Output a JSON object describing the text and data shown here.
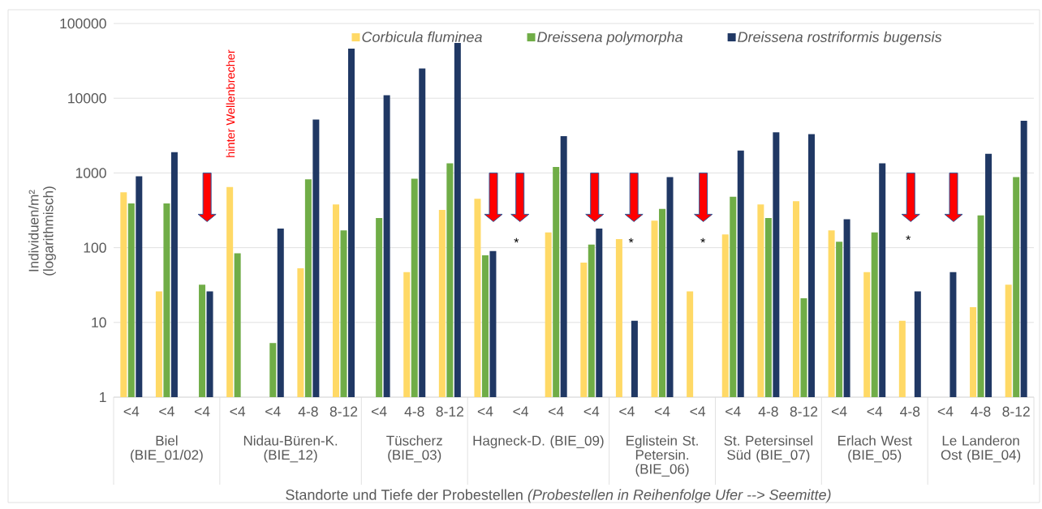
{
  "chart_data": {
    "type": "bar",
    "xlabel": "Standorte und Tiefe der Probestellen *(Probestellen in Reihenfolge Ufer --> Seemitte)*",
    "ylabel": "Individuen/m² (logarithmisch)",
    "categories": [
      "<4",
      "<4",
      "<4",
      "<4",
      "<4",
      "4-8",
      "8-12",
      "<4",
      "4-8",
      "8-12",
      "<4",
      "<4",
      "<4",
      "<4",
      "<4",
      "<4",
      "<4",
      "<4",
      "4-8",
      "8-12",
      "<4",
      "<4",
      "4-8",
      "<4",
      "4-8",
      "8-12"
    ],
    "series": [
      {
        "name": "Corbicula fluminea",
        "color": "#ffd966",
        "values": [
          550,
          26,
          null,
          650,
          null,
          53,
          380,
          null,
          47,
          320,
          450,
          null,
          160,
          63,
          130,
          230,
          26,
          150,
          380,
          420,
          170,
          47,
          10.5,
          null,
          16,
          32
        ]
      },
      {
        "name": "Dreissena polymorpha",
        "color": "#70ad47",
        "values": [
          390,
          390,
          32,
          84,
          5.3,
          820,
          170,
          250,
          840,
          1350,
          79,
          null,
          1200,
          110,
          null,
          330,
          null,
          480,
          250,
          21,
          120,
          160,
          null,
          null,
          270,
          880
        ]
      },
      {
        "name": "Dreissena rostriformis bugensis",
        "color": "#203864",
        "values": [
          900,
          1900,
          26,
          null,
          180,
          5200,
          46000,
          11000,
          25000,
          55000,
          90,
          null,
          3100,
          180,
          10.5,
          880,
          null,
          2000,
          3500,
          3300,
          240,
          1350,
          26,
          47,
          1800,
          5000
        ]
      }
    ],
    "log": true,
    "ylim": [
      1,
      100000
    ],
    "yticks": [
      1,
      10,
      100,
      1000,
      10000,
      100000
    ],
    "grid": "y",
    "legend": "top",
    "annotations": [
      "hinter Wellenbrecher",
      "*",
      "*",
      "*",
      "*",
      "Biel (BIE_01/02)",
      "Nidau-Büren-K. (BIE_12)",
      "Tüscherz (BIE_03)",
      "Hagneck-D. (BIE_09)",
      "Eglistein St. Petersin. (BIE_06)",
      "St. Petersinsel Süd (BIE_07)",
      "Erlach West (BIE_05)",
      "Le Landeron Ost (BIE_04)"
    ]
  }
}
